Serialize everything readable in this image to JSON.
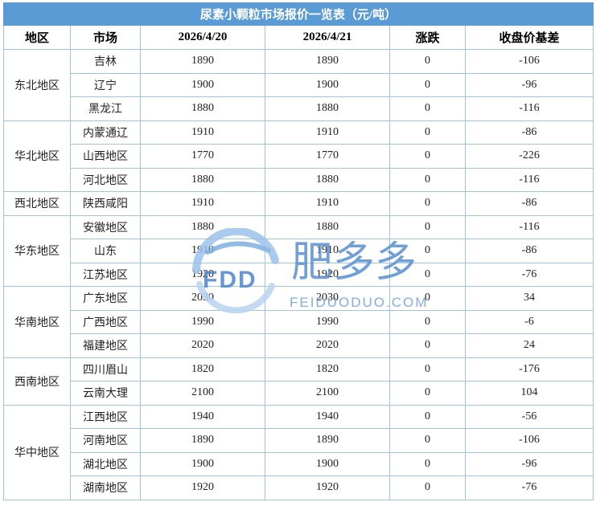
{
  "table": {
    "title": "尿素小颗粒市场报价一览表（元/吨）",
    "headers": [
      "地区",
      "市场",
      "2026/4/20",
      "2026/4/21",
      "涨跌",
      "收盘价基差"
    ],
    "groups": [
      {
        "region": "东北地区",
        "rows": [
          {
            "market": "吉林",
            "d1": "1890",
            "d2": "1890",
            "change": "0",
            "basis": "-106"
          },
          {
            "market": "辽宁",
            "d1": "1900",
            "d2": "1900",
            "change": "0",
            "basis": "-96"
          },
          {
            "market": "黑龙江",
            "d1": "1880",
            "d2": "1880",
            "change": "0",
            "basis": "-116"
          }
        ]
      },
      {
        "region": "华北地区",
        "rows": [
          {
            "market": "内蒙通辽",
            "d1": "1910",
            "d2": "1910",
            "change": "0",
            "basis": "-86"
          },
          {
            "market": "山西地区",
            "d1": "1770",
            "d2": "1770",
            "change": "0",
            "basis": "-226"
          },
          {
            "market": "河北地区",
            "d1": "1880",
            "d2": "1880",
            "change": "0",
            "basis": "-116"
          }
        ]
      },
      {
        "region": "西北地区",
        "rows": [
          {
            "market": "陕西咸阳",
            "d1": "1910",
            "d2": "1910",
            "change": "0",
            "basis": "-86"
          }
        ]
      },
      {
        "region": "华东地区",
        "rows": [
          {
            "market": "安徽地区",
            "d1": "1880",
            "d2": "1880",
            "change": "0",
            "basis": "-116"
          },
          {
            "market": "山东",
            "d1": "1910",
            "d2": "1910",
            "change": "0",
            "basis": "-86"
          },
          {
            "market": "江苏地区",
            "d1": "1920",
            "d2": "1920",
            "change": "0",
            "basis": "-76"
          }
        ]
      },
      {
        "region": "华南地区",
        "rows": [
          {
            "market": "广东地区",
            "d1": "2030",
            "d2": "2030",
            "change": "0",
            "basis": "34"
          },
          {
            "market": "广西地区",
            "d1": "1990",
            "d2": "1990",
            "change": "0",
            "basis": "-6"
          },
          {
            "market": "福建地区",
            "d1": "2020",
            "d2": "2020",
            "change": "0",
            "basis": "24"
          }
        ]
      },
      {
        "region": "西南地区",
        "rows": [
          {
            "market": "四川眉山",
            "d1": "1820",
            "d2": "1820",
            "change": "0",
            "basis": "-176"
          },
          {
            "market": "云南大理",
            "d1": "2100",
            "d2": "2100",
            "change": "0",
            "basis": "104"
          }
        ]
      },
      {
        "region": "华中地区",
        "rows": [
          {
            "market": "江西地区",
            "d1": "1940",
            "d2": "1940",
            "change": "0",
            "basis": "-56"
          },
          {
            "market": "河南地区",
            "d1": "1890",
            "d2": "1890",
            "change": "0",
            "basis": "-106"
          },
          {
            "market": "湖北地区",
            "d1": "1900",
            "d2": "1900",
            "change": "0",
            "basis": "-96"
          },
          {
            "market": "湖南地区",
            "d1": "1920",
            "d2": "1920",
            "change": "0",
            "basis": "-76"
          }
        ]
      }
    ]
  },
  "watermark": {
    "logo": "FDD",
    "brand": "肥多多",
    "url": "FEIDUODUO.COM"
  },
  "colors": {
    "title_bg": "#5b9bd5",
    "border": "#9fc5e2",
    "watermark": "#5a8fd0"
  }
}
